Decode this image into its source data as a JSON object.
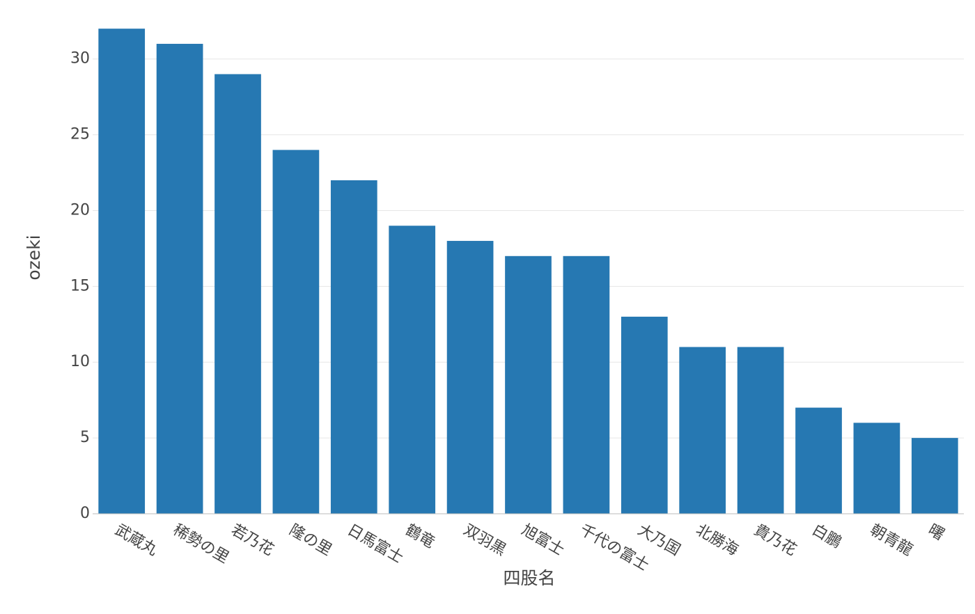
{
  "chart_data": {
    "type": "bar",
    "categories": [
      "武蔵丸",
      "稀勢の里",
      "若乃花",
      "隆の里",
      "日馬富士",
      "鶴竜",
      "双羽黒",
      "旭富士",
      "千代の富士",
      "大乃国",
      "北勝海",
      "貴乃花",
      "白鵬",
      "朝青龍",
      "曙"
    ],
    "values": [
      32,
      31,
      29,
      24,
      22,
      19,
      18,
      17,
      17,
      13,
      11,
      11,
      7,
      6,
      5
    ],
    "color": "#2678b2",
    "x_label": "四股名",
    "y_label": "ozeki",
    "ylim": [
      0,
      32.1
    ],
    "yticks": [
      0,
      5,
      10,
      15,
      20,
      25,
      30
    ],
    "grid": true
  }
}
